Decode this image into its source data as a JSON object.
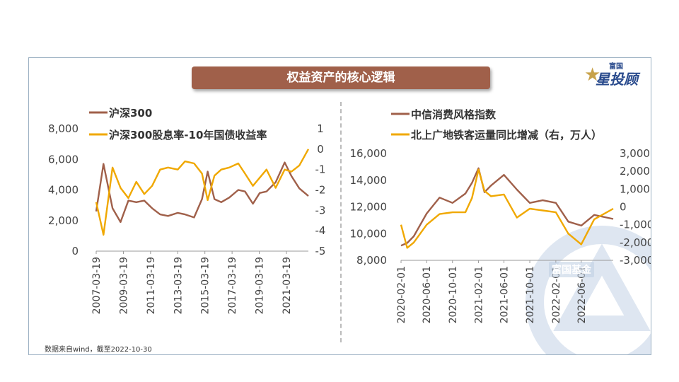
{
  "title": "权益资产的核心逻辑",
  "logo": {
    "small": "富国",
    "big": "星投顾",
    "star_icon": "star-icon"
  },
  "watermark": "富国基金",
  "source": "数据来自wind，截至2022-10-30",
  "colors": {
    "brown": "#a0604a",
    "orange": "#f0a800",
    "title_bar": "#a0604a"
  },
  "chart_data": [
    {
      "type": "line",
      "title": "",
      "x": [
        "2007-03-19",
        "2007-10-01",
        "2008-06-01",
        "2009-01-01",
        "2009-08-01",
        "2010-03-01",
        "2010-10-01",
        "2011-05-01",
        "2011-12-01",
        "2012-07-01",
        "2013-03-19",
        "2013-10-01",
        "2014-06-01",
        "2015-01-01",
        "2015-06-01",
        "2015-12-01",
        "2016-06-01",
        "2017-01-01",
        "2017-09-01",
        "2018-03-01",
        "2018-10-01",
        "2019-04-01",
        "2019-10-01",
        "2020-06-01",
        "2021-02-01",
        "2021-08-01",
        "2022-03-01",
        "2022-10-30"
      ],
      "x_ticks": [
        "2007-03-19",
        "2009-03-19",
        "2011-03-19",
        "2013-03-19",
        "2015-03-19",
        "2017-03-19",
        "2019-03-19",
        "2021-03-19"
      ],
      "y_left": {
        "ticks": [
          "0",
          "2,000",
          "4,000",
          "6,000",
          "8,000"
        ],
        "ylim": [
          0,
          8000
        ]
      },
      "y_right": {
        "ticks": [
          "-5",
          "-4",
          "-3",
          "-2",
          "-1",
          "0",
          "1"
        ],
        "ylim": [
          -5,
          1
        ]
      },
      "series": [
        {
          "name": "沪深300",
          "axis": "left",
          "color": "#a0604a",
          "values": [
            2600,
            5700,
            2800,
            1900,
            3300,
            3200,
            3300,
            2800,
            2400,
            2300,
            2500,
            2400,
            2200,
            3400,
            5200,
            3400,
            3200,
            3500,
            4000,
            3900,
            3100,
            3800,
            3900,
            4500,
            5800,
            4900,
            4100,
            3600
          ]
        },
        {
          "name": "沪深300股息率-10年国债收益率",
          "axis": "right",
          "color": "#f0a800",
          "values": [
            -2.6,
            -4.2,
            -0.9,
            -1.9,
            -2.4,
            -1.6,
            -2.2,
            -1.8,
            -1.0,
            -0.9,
            -1.0,
            -0.6,
            -0.7,
            -1.2,
            -2.5,
            -1.3,
            -1.0,
            -0.9,
            -0.7,
            -1.2,
            -1.8,
            -1.4,
            -1.0,
            -1.9,
            -1.0,
            -1.1,
            -0.8,
            0.0
          ]
        }
      ]
    },
    {
      "type": "line",
      "title": "",
      "x": [
        "2020-02-01",
        "2020-03-01",
        "2020-04-01",
        "2020-06-01",
        "2020-08-01",
        "2020-10-01",
        "2020-12-01",
        "2021-01-01",
        "2021-02-01",
        "2021-03-01",
        "2021-04-01",
        "2021-06-01",
        "2021-08-01",
        "2021-10-01",
        "2021-12-01",
        "2022-02-01",
        "2022-04-01",
        "2022-06-01",
        "2022-08-01",
        "2022-10-30"
      ],
      "x_ticks": [
        "2020-02-01",
        "2020-06-01",
        "2020-10-01",
        "2021-02-01",
        "2021-06-01",
        "2021-10-01",
        "2022-02-01",
        "2022-06-01"
      ],
      "y_left": {
        "ticks": [
          "8,000",
          "10,000",
          "12,000",
          "14,000",
          "16,000"
        ],
        "ylim": [
          8000,
          16000
        ]
      },
      "y_right": {
        "ticks": [
          "-3,000",
          "-2,000",
          "-1,000",
          "0",
          "1,000",
          "2,000",
          "3,000"
        ],
        "ylim": [
          -3000,
          3000
        ]
      },
      "series": [
        {
          "name": "中信消费风格指数",
          "axis": "left",
          "color": "#a0604a",
          "values": [
            9100,
            9300,
            9800,
            11500,
            12700,
            12300,
            13000,
            13800,
            14900,
            13100,
            13600,
            14400,
            13300,
            12300,
            12500,
            12300,
            10900,
            10600,
            11400,
            11100
          ]
        },
        {
          "name": "北上广地铁客运量同比增减（右，万人）",
          "axis": "right",
          "color": "#f0a800",
          "values": [
            -1000,
            -2300,
            -2000,
            -1000,
            -400,
            -300,
            -300,
            500,
            2100,
            900,
            600,
            700,
            -600,
            -100,
            -200,
            -300,
            -1500,
            -2100,
            -700,
            -100
          ]
        }
      ]
    }
  ]
}
